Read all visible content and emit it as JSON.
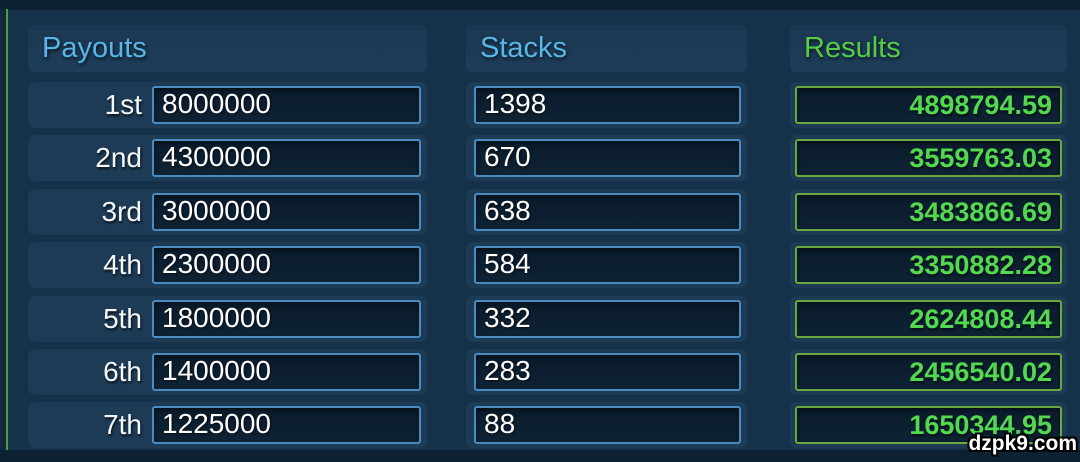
{
  "columns": {
    "payouts": {
      "title": "Payouts",
      "rows": [
        {
          "label": "1st",
          "value": "8000000"
        },
        {
          "label": "2nd",
          "value": "4300000"
        },
        {
          "label": "3rd",
          "value": "3000000"
        },
        {
          "label": "4th",
          "value": "2300000"
        },
        {
          "label": "5th",
          "value": "1800000"
        },
        {
          "label": "6th",
          "value": "1400000"
        },
        {
          "label": "7th",
          "value": "1225000"
        }
      ]
    },
    "stacks": {
      "title": "Stacks",
      "values": [
        "1398",
        "670",
        "638",
        "584",
        "332",
        "283",
        "88"
      ]
    },
    "results": {
      "title": "Results",
      "values": [
        "4898794.59",
        "3559763.03",
        "3483866.69",
        "3350882.28",
        "2624808.44",
        "2456540.02",
        "1650344.95"
      ]
    }
  },
  "watermark": "dzpk9.com",
  "colors": {
    "background": "#16314a",
    "header_blue": "#58b6e8",
    "header_green": "#55cd45",
    "input_border_blue": "#4a8cc2",
    "result_border_green": "#68a83f",
    "result_text_green": "#52d950",
    "left_accent_line_green": "#4f9e3d"
  }
}
